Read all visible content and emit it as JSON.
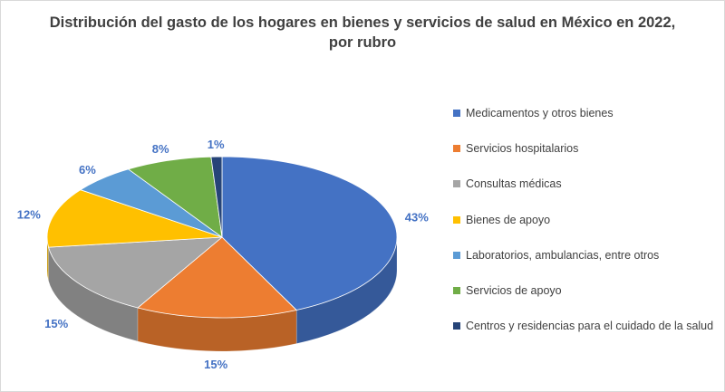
{
  "chart_data": {
    "type": "pie",
    "title": [
      "Distribución del gasto de los hogares en bienes y servicios de salud en México en 2022,",
      "por rubro"
    ],
    "categories": [
      "Medicamentos y otros bienes",
      "Servicios hospitalarios",
      "Consultas médicas",
      "Bienes de apoyo",
      "Laboratorios, ambulancias, entre otros",
      "Servicios de apoyo",
      "Centros y residencias para el cuidado de la salud"
    ],
    "values": [
      43,
      15,
      15,
      12,
      6,
      8,
      1
    ],
    "labels": [
      "43%",
      "15%",
      "15%",
      "12%",
      "6%",
      "8%",
      "1%"
    ],
    "colors": [
      "#4472c4",
      "#ed7d31",
      "#a5a5a5",
      "#ffc000",
      "#5b9bd5",
      "#70ad47",
      "#264478"
    ],
    "legend_position": "right",
    "style": "3d"
  }
}
